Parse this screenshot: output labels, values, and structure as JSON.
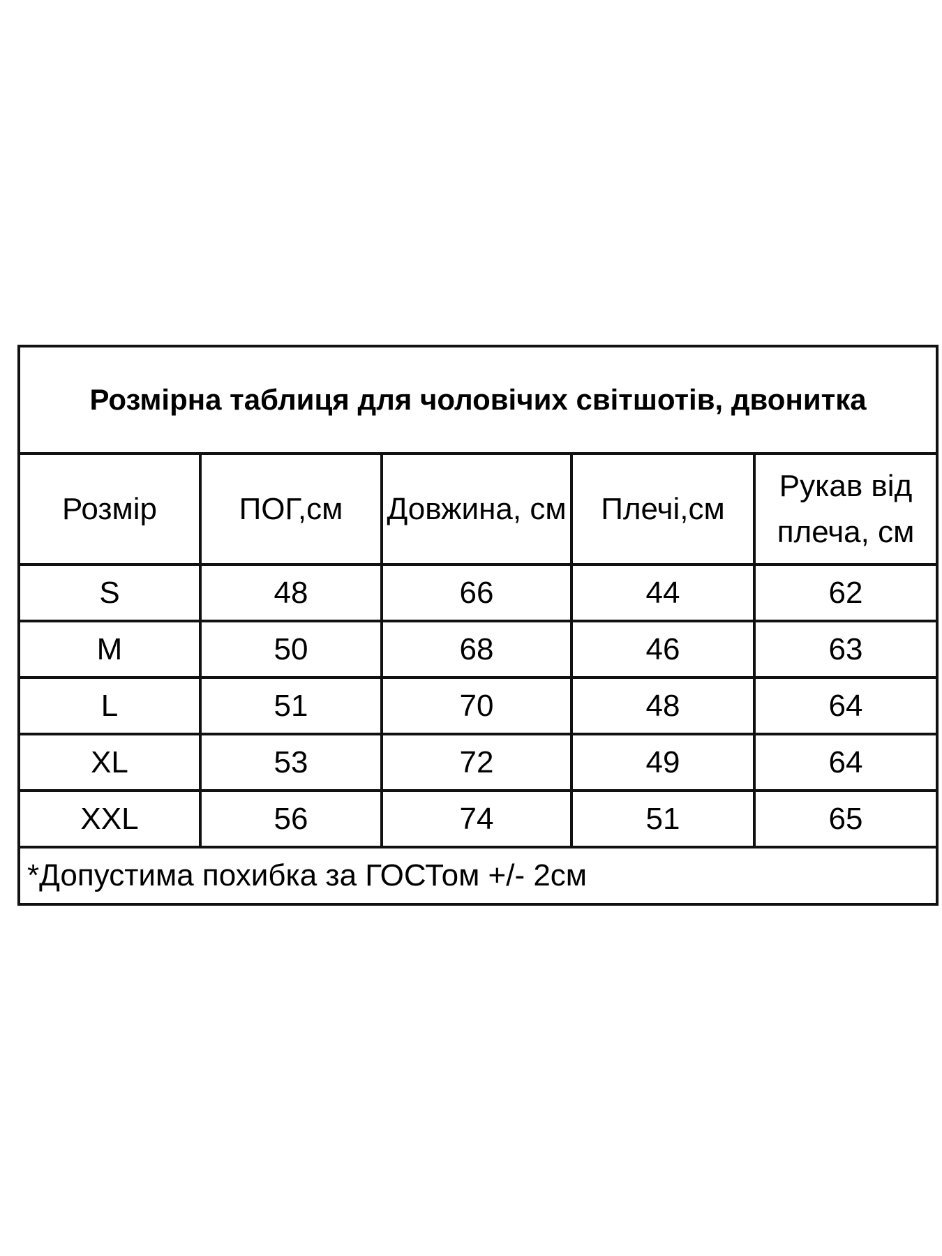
{
  "title": "Розмірна таблиця для чоловічих світшотів, двонитка",
  "headers": [
    "Розмір",
    "ПОГ,см",
    "Довжина, см",
    "Плечі,см",
    "Рукав від плеча, см"
  ],
  "rows": [
    [
      "S",
      "48",
      "66",
      "44",
      "62"
    ],
    [
      "M",
      "50",
      "68",
      "46",
      "63"
    ],
    [
      "L",
      "51",
      "70",
      "48",
      "64"
    ],
    [
      "XL",
      "53",
      "72",
      "49",
      "64"
    ],
    [
      "XXL",
      "56",
      "74",
      "51",
      "65"
    ]
  ],
  "footnote": "*Допустима похибка за ГОСТом +/- 2см"
}
